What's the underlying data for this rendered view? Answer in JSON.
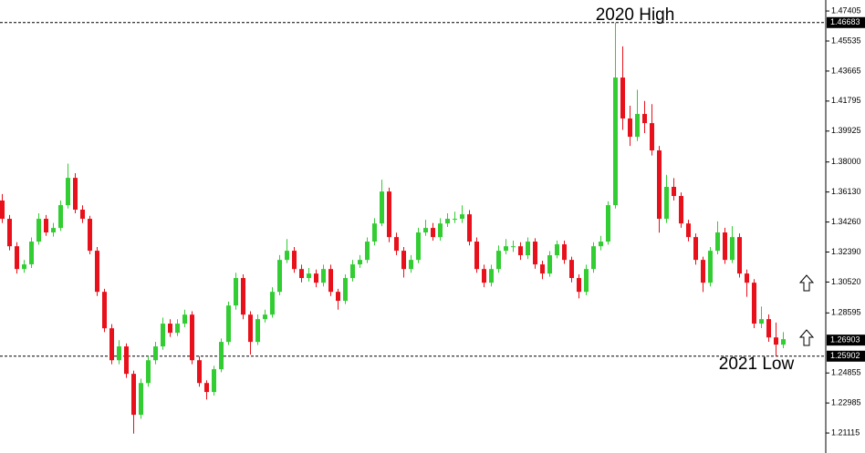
{
  "chart_data": {
    "type": "candlestick",
    "annotations": [
      "2020 High",
      "2021 Low"
    ],
    "up_color": "#32cd32",
    "down_color": "#e8101a",
    "ylim": [
      1.1987,
      1.4809
    ],
    "yticks": [
      1.47405,
      1.45535,
      1.43665,
      1.41795,
      1.39925,
      {
        "value": 1.38,
        "label": "1.38000"
      },
      {
        "value": 1.3613,
        "label": "1.36130"
      },
      {
        "value": 1.3426,
        "label": "1.34260"
      },
      {
        "value": 1.3239,
        "label": "1.32390"
      },
      {
        "value": 1.3052,
        "label": "1.30520"
      },
      1.28595,
      1.24855,
      1.22985,
      1.21115
    ],
    "hlines": [
      1.46683,
      1.25902
    ],
    "current_price": 1.26903,
    "candles": [
      [
        1.356,
        1.36,
        1.342,
        1.3446
      ],
      [
        1.3446,
        1.347,
        1.325,
        1.3275
      ],
      [
        1.3275,
        1.33,
        1.3105,
        1.3133
      ],
      [
        1.3133,
        1.319,
        1.311,
        1.3162
      ],
      [
        1.3162,
        1.333,
        1.314,
        1.3304
      ],
      [
        1.3304,
        1.348,
        1.3285,
        1.3446
      ],
      [
        1.3446,
        1.347,
        1.334,
        1.3361
      ],
      [
        1.3361,
        1.342,
        1.3335,
        1.3389
      ],
      [
        1.3389,
        1.356,
        1.337,
        1.3531
      ],
      [
        1.3531,
        1.379,
        1.351,
        1.3701
      ],
      [
        1.3701,
        1.373,
        1.348,
        1.3503
      ],
      [
        1.3503,
        1.353,
        1.342,
        1.3446
      ],
      [
        1.3446,
        1.3465,
        1.3225,
        1.3247
      ],
      [
        1.3247,
        1.327,
        1.2965,
        1.2991
      ],
      [
        1.2991,
        1.301,
        1.274,
        1.2764
      ],
      [
        1.2764,
        1.279,
        1.254,
        1.2565
      ],
      [
        1.2565,
        1.269,
        1.254,
        1.2651
      ],
      [
        1.2651,
        1.267,
        1.2455,
        1.248
      ],
      [
        1.248,
        1.25,
        1.2108,
        1.2225
      ],
      [
        1.2225,
        1.245,
        1.22,
        1.2423
      ],
      [
        1.2423,
        1.259,
        1.24,
        1.2565
      ],
      [
        1.2565,
        1.268,
        1.254,
        1.2651
      ],
      [
        1.2651,
        1.283,
        1.263,
        1.2793
      ],
      [
        1.2793,
        1.282,
        1.271,
        1.2736
      ],
      [
        1.2736,
        1.282,
        1.2715,
        1.2793
      ],
      [
        1.2793,
        1.288,
        1.277,
        1.2849
      ],
      [
        1.2849,
        1.287,
        1.254,
        1.2565
      ],
      [
        1.2565,
        1.259,
        1.24,
        1.2423
      ],
      [
        1.2423,
        1.244,
        1.232,
        1.2367
      ],
      [
        1.2367,
        1.253,
        1.2345,
        1.2509
      ],
      [
        1.2509,
        1.27,
        1.249,
        1.2679
      ],
      [
        1.2679,
        1.293,
        1.266,
        1.2906
      ],
      [
        1.2906,
        1.311,
        1.288,
        1.3077
      ],
      [
        1.3077,
        1.31,
        1.282,
        1.2849
      ],
      [
        1.2849,
        1.287,
        1.26,
        1.2679
      ],
      [
        1.2679,
        1.285,
        1.266,
        1.2821
      ],
      [
        1.2821,
        1.288,
        1.28,
        1.2849
      ],
      [
        1.2849,
        1.302,
        1.283,
        1.2991
      ],
      [
        1.2991,
        1.322,
        1.297,
        1.319
      ],
      [
        1.319,
        1.332,
        1.317,
        1.3247
      ],
      [
        1.3247,
        1.327,
        1.311,
        1.3133
      ],
      [
        1.3133,
        1.316,
        1.305,
        1.3077
      ],
      [
        1.3077,
        1.314,
        1.3055,
        1.3105
      ],
      [
        1.3105,
        1.313,
        1.302,
        1.3048
      ],
      [
        1.3048,
        1.316,
        1.3025,
        1.3133
      ],
      [
        1.3133,
        1.316,
        1.2965,
        1.2991
      ],
      [
        1.2991,
        1.301,
        1.288,
        1.2935
      ],
      [
        1.2935,
        1.31,
        1.2915,
        1.3077
      ],
      [
        1.3077,
        1.319,
        1.3055,
        1.3162
      ],
      [
        1.3162,
        1.322,
        1.314,
        1.319
      ],
      [
        1.319,
        1.333,
        1.317,
        1.3304
      ],
      [
        1.3304,
        1.345,
        1.328,
        1.3417
      ],
      [
        1.3417,
        1.369,
        1.34,
        1.3616
      ],
      [
        1.3616,
        1.364,
        1.33,
        1.3332
      ],
      [
        1.3332,
        1.336,
        1.322,
        1.3247
      ],
      [
        1.3247,
        1.327,
        1.308,
        1.3133
      ],
      [
        1.3133,
        1.322,
        1.311,
        1.319
      ],
      [
        1.319,
        1.339,
        1.317,
        1.3361
      ],
      [
        1.3361,
        1.344,
        1.334,
        1.3389
      ],
      [
        1.3389,
        1.342,
        1.331,
        1.3332
      ],
      [
        1.3332,
        1.345,
        1.331,
        1.3417
      ],
      [
        1.3417,
        1.348,
        1.3395,
        1.3446
      ],
      [
        1.3446,
        1.349,
        1.342,
        1.3446
      ],
      [
        1.3446,
        1.353,
        1.342,
        1.3474
      ],
      [
        1.3474,
        1.35,
        1.328,
        1.3304
      ],
      [
        1.3304,
        1.333,
        1.311,
        1.3133
      ],
      [
        1.3133,
        1.316,
        1.302,
        1.3048
      ],
      [
        1.3048,
        1.316,
        1.3025,
        1.3133
      ],
      [
        1.3133,
        1.328,
        1.311,
        1.3247
      ],
      [
        1.3247,
        1.332,
        1.3225,
        1.3275
      ],
      [
        1.3275,
        1.331,
        1.324,
        1.3275
      ],
      [
        1.3275,
        1.33,
        1.319,
        1.3219
      ],
      [
        1.3219,
        1.333,
        1.3195,
        1.3304
      ],
      [
        1.3304,
        1.3325,
        1.3135,
        1.3162
      ],
      [
        1.3162,
        1.3185,
        1.307,
        1.3105
      ],
      [
        1.3105,
        1.3245,
        1.3085,
        1.3219
      ],
      [
        1.3219,
        1.331,
        1.32,
        1.3287
      ],
      [
        1.3287,
        1.331,
        1.3165,
        1.319
      ],
      [
        1.319,
        1.321,
        1.305,
        1.3077
      ],
      [
        1.3077,
        1.31,
        1.295,
        1.2991
      ],
      [
        1.2991,
        1.316,
        1.297,
        1.3133
      ],
      [
        1.3133,
        1.33,
        1.311,
        1.3275
      ],
      [
        1.3275,
        1.334,
        1.325,
        1.3304
      ],
      [
        1.3304,
        1.3555,
        1.3285,
        1.3531
      ],
      [
        1.3531,
        1.4668,
        1.351,
        1.4326
      ],
      [
        1.4326,
        1.452,
        1.4,
        1.4071
      ],
      [
        1.4071,
        1.415,
        1.39,
        1.3957
      ],
      [
        1.3957,
        1.425,
        1.393,
        1.4099
      ],
      [
        1.4099,
        1.418,
        1.398,
        1.4042
      ],
      [
        1.4042,
        1.416,
        1.384,
        1.3872
      ],
      [
        1.3872,
        1.39,
        1.336,
        1.3446
      ],
      [
        1.3446,
        1.372,
        1.342,
        1.3645
      ],
      [
        1.3645,
        1.37,
        1.356,
        1.3588
      ],
      [
        1.3588,
        1.361,
        1.339,
        1.3417
      ],
      [
        1.3417,
        1.344,
        1.3305,
        1.3332
      ],
      [
        1.3332,
        1.3355,
        1.316,
        1.319
      ],
      [
        1.319,
        1.321,
        1.299,
        1.3048
      ],
      [
        1.3048,
        1.327,
        1.3025,
        1.3247
      ],
      [
        1.3247,
        1.343,
        1.3225,
        1.3361
      ],
      [
        1.3361,
        1.339,
        1.3165,
        1.319
      ],
      [
        1.319,
        1.34,
        1.317,
        1.3332
      ],
      [
        1.3332,
        1.3355,
        1.308,
        1.3105
      ],
      [
        1.3105,
        1.313,
        1.296,
        1.3048
      ],
      [
        1.3048,
        1.307,
        1.2765,
        1.2793
      ],
      [
        1.2793,
        1.29,
        1.2765,
        1.2821
      ],
      [
        1.2821,
        1.285,
        1.268,
        1.2707
      ],
      [
        1.2707,
        1.28,
        1.259,
        1.2662
      ],
      [
        1.2662,
        1.274,
        1.264,
        1.2696
      ]
    ]
  }
}
